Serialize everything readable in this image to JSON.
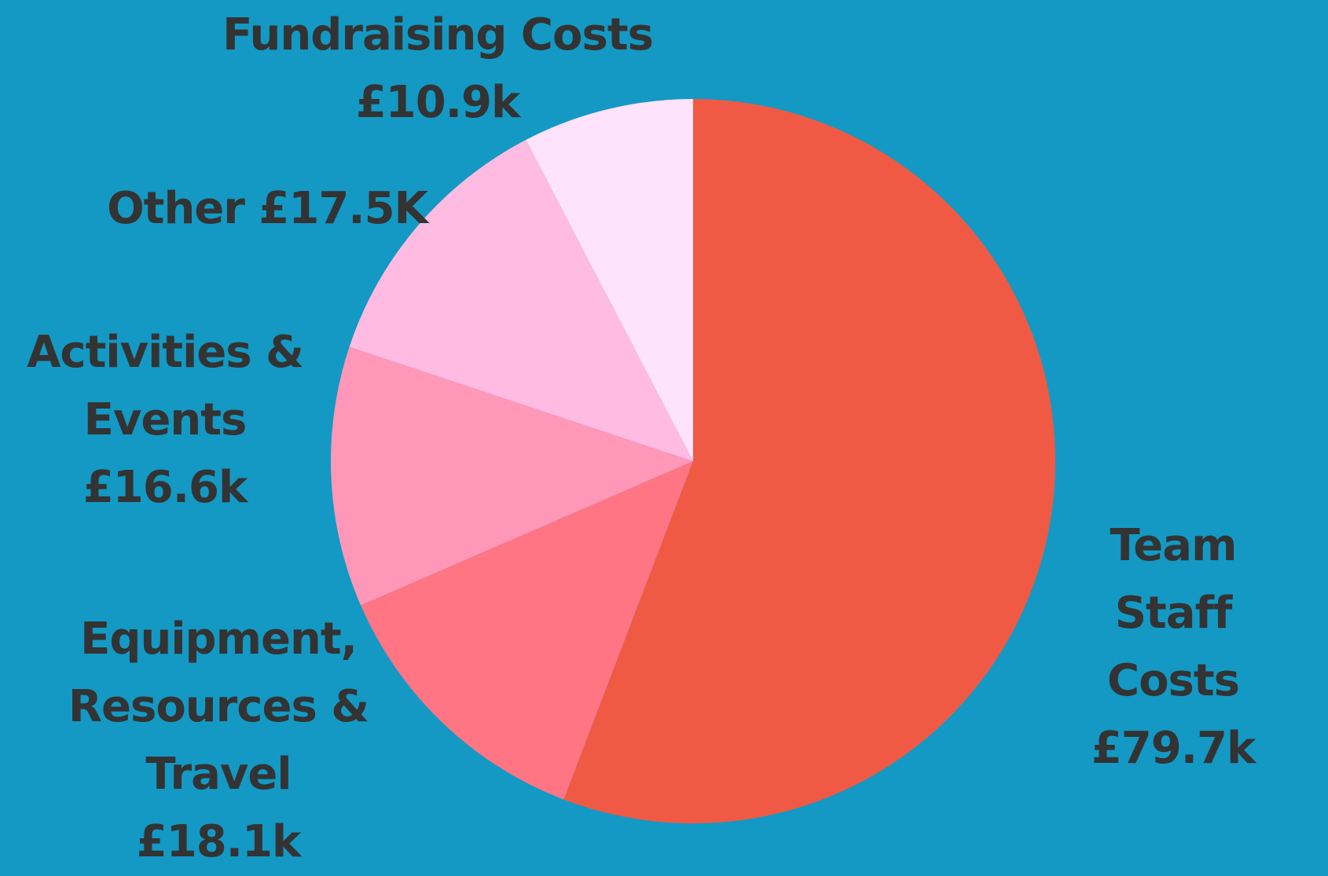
{
  "chart_data": {
    "type": "pie",
    "categories": [
      "Team\nStaff Costs",
      "Equipment,\nResources &\nTravel",
      "Activities &\nEvents",
      "Other",
      "Fundraising Costs"
    ],
    "values": [
      79.7,
      18.1,
      16.6,
      17.5,
      10.9
    ],
    "value_labels": [
      "£79.7k",
      "£18.1k",
      "£16.6k",
      "£17.5K",
      "£10.9k"
    ],
    "colors": [
      "#f05a44",
      "#ff7583",
      "#ff97b8",
      "#ffbbe1",
      "#ffe2fb"
    ]
  }
}
